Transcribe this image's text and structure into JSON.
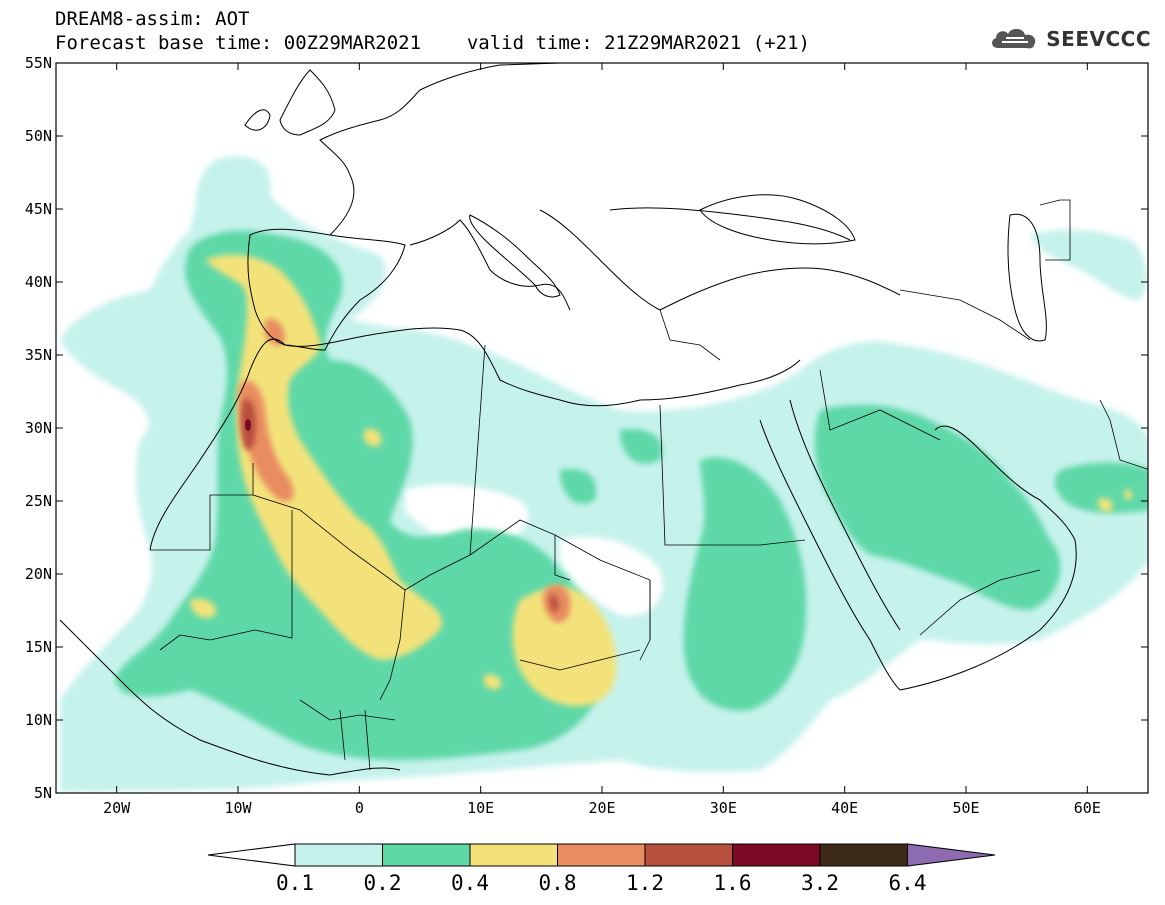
{
  "header": {
    "title_line1": "DREAM8-assim: AOT",
    "base_time_label": "Forecast base time: 00Z29MAR2021",
    "valid_time_label": "valid time: 21Z29MAR2021 (+21)"
  },
  "logo": {
    "text": "SEEVCCC",
    "icon": "cloud-logo-icon"
  },
  "map": {
    "lon_range": [
      -25,
      65
    ],
    "lat_range": [
      5,
      55
    ],
    "lon_ticks": [
      {
        "value": -20,
        "label": "20W"
      },
      {
        "value": -10,
        "label": "10W"
      },
      {
        "value": 0,
        "label": "0"
      },
      {
        "value": 10,
        "label": "10E"
      },
      {
        "value": 20,
        "label": "20E"
      },
      {
        "value": 30,
        "label": "30E"
      },
      {
        "value": 40,
        "label": "40E"
      },
      {
        "value": 50,
        "label": "50E"
      },
      {
        "value": 60,
        "label": "60E"
      }
    ],
    "lat_ticks": [
      {
        "value": 5,
        "label": "5N"
      },
      {
        "value": 10,
        "label": "10N"
      },
      {
        "value": 15,
        "label": "15N"
      },
      {
        "value": 20,
        "label": "20N"
      },
      {
        "value": 25,
        "label": "25N"
      },
      {
        "value": 30,
        "label": "30N"
      },
      {
        "value": 35,
        "label": "35N"
      },
      {
        "value": 40,
        "label": "40N"
      },
      {
        "value": 45,
        "label": "45N"
      },
      {
        "value": 50,
        "label": "50N"
      },
      {
        "value": 55,
        "label": "55N"
      }
    ]
  },
  "colorbar": {
    "levels": [
      "0.1",
      "0.2",
      "0.4",
      "0.8",
      "1.2",
      "1.6",
      "3.2",
      "6.4"
    ],
    "colors": [
      "#c6f2ec",
      "#5fd8a8",
      "#f3e27a",
      "#e98c61",
      "#b8503e",
      "#7c0a24",
      "#3d2a17"
    ],
    "under_color": "#ffffff",
    "over_color": "#8e6bb0"
  }
}
